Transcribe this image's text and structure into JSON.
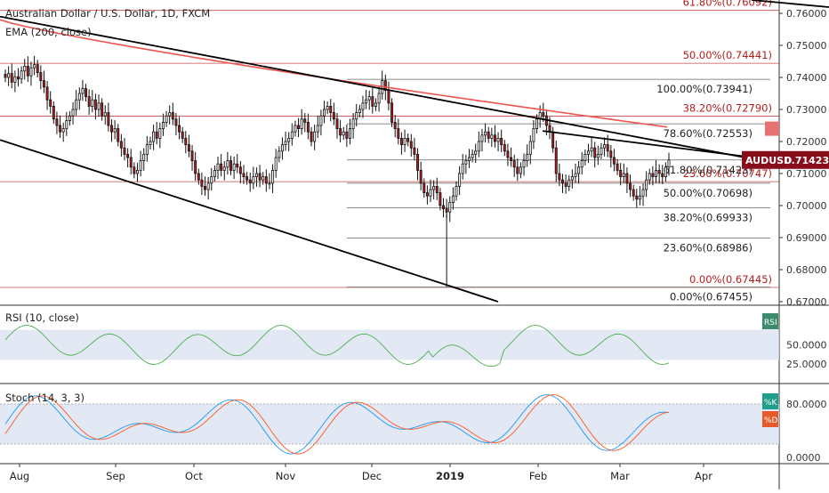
{
  "header": {
    "title": "Australian Dollar / U.S. Dollar, 1D, FXCM",
    "ema_label": "EMA (200, close)",
    "rsi_label": "RSI (10, close)",
    "stoch_label": "Stoch (14, 3, 3)"
  },
  "colors": {
    "up": "#ffffff",
    "down": "#b71c1c",
    "candle_outline": "#111111",
    "ema": "#ef5350",
    "fib": "#b71c1c",
    "trendline": "#000000",
    "rsi_line": "#4caf50",
    "stoch_k": "#2196f3",
    "stoch_d": "#ff5722",
    "band": "#d6e0f0",
    "price_badge": "#880e1b",
    "rsi_badge": "#3d8b6d",
    "k_badge": "#1f9e89",
    "d_badge": "#e65a2a"
  },
  "price_badge": {
    "label": "AUDUSD",
    "value": "0.71423"
  },
  "rsi_badge": "RSI",
  "k_badge": "%K",
  "d_badge": "%D",
  "chart_data": {
    "type": "candlestick",
    "symbol": "AUDUSD",
    "current_price": 0.71423,
    "x_axis_labels": [
      "Aug",
      "Sep",
      "Oct",
      "Nov",
      "Dec",
      "2019",
      "Feb",
      "Mar",
      "Apr"
    ],
    "y_axis": {
      "ticks": [
        "0.76000",
        "0.75000",
        "0.74000",
        "0.73000",
        "0.72000",
        "0.71000",
        "0.70000",
        "0.69000",
        "0.68000",
        "0.67000"
      ],
      "range": [
        0.67,
        0.765
      ]
    },
    "fib_levels_upper": [
      {
        "label": "61.80%(0.76092)",
        "value": 0.76092
      },
      {
        "label": "50.00%(0.74441)",
        "value": 0.74441
      },
      {
        "label": "38.20%(0.72790)",
        "value": 0.7279
      },
      {
        "label": "23.60%(0.70747)",
        "value": 0.70747
      },
      {
        "label": "0.00%(0.67445)",
        "value": 0.67445
      }
    ],
    "fib_levels_lower": [
      {
        "label": "100.00%(0.73941)",
        "value": 0.73941
      },
      {
        "label": "78.60%(0.72553)",
        "value": 0.72553
      },
      {
        "label": "61.80%(0.71423)",
        "value": 0.71423
      },
      {
        "label": "50.00%(0.70698)",
        "value": 0.70698
      },
      {
        "label": "38.20%(0.69933)",
        "value": 0.69933
      },
      {
        "label": "23.60%(0.68986)",
        "value": 0.68986
      },
      {
        "label": "0.00%(0.67455)",
        "value": 0.67455
      }
    ],
    "close": [
      0.74,
      0.7412,
      0.7385,
      0.7402,
      0.7395,
      0.742,
      0.7435,
      0.7405,
      0.743,
      0.744,
      0.7415,
      0.739,
      0.737,
      0.733,
      0.731,
      0.727,
      0.725,
      0.723,
      0.724,
      0.7265,
      0.728,
      0.73,
      0.733,
      0.735,
      0.7365,
      0.734,
      0.731,
      0.733,
      0.73,
      0.732,
      0.728,
      0.729,
      0.725,
      0.723,
      0.724,
      0.72,
      0.718,
      0.716,
      0.715,
      0.712,
      0.71,
      0.711,
      0.714,
      0.716,
      0.719,
      0.72,
      0.723,
      0.721,
      0.724,
      0.726,
      0.728,
      0.729,
      0.727,
      0.725,
      0.723,
      0.721,
      0.719,
      0.717,
      0.714,
      0.71,
      0.708,
      0.706,
      0.705,
      0.707,
      0.709,
      0.711,
      0.713,
      0.711,
      0.712,
      0.714,
      0.711,
      0.713,
      0.712,
      0.71,
      0.709,
      0.708,
      0.707,
      0.709,
      0.71,
      0.708,
      0.709,
      0.707,
      0.707,
      0.711,
      0.715,
      0.717,
      0.719,
      0.72,
      0.721,
      0.723,
      0.725,
      0.724,
      0.727,
      0.726,
      0.723,
      0.72,
      0.723,
      0.725,
      0.728,
      0.73,
      0.731,
      0.729,
      0.727,
      0.724,
      0.722,
      0.723,
      0.721,
      0.724,
      0.727,
      0.729,
      0.73,
      0.732,
      0.733,
      0.734,
      0.731,
      0.732,
      0.735,
      0.739,
      0.736,
      0.732,
      0.726,
      0.724,
      0.721,
      0.719,
      0.721,
      0.72,
      0.718,
      0.716,
      0.711,
      0.707,
      0.704,
      0.703,
      0.705,
      0.706,
      0.704,
      0.7,
      0.699,
      0.698,
      0.701,
      0.703,
      0.706,
      0.71,
      0.713,
      0.714,
      0.715,
      0.716,
      0.717,
      0.72,
      0.722,
      0.723,
      0.721,
      0.722,
      0.72,
      0.721,
      0.719,
      0.717,
      0.715,
      0.714,
      0.712,
      0.71,
      0.712,
      0.714,
      0.716,
      0.72,
      0.724,
      0.727,
      0.729,
      0.728,
      0.725,
      0.723,
      0.718,
      0.71,
      0.708,
      0.707,
      0.706,
      0.708,
      0.709,
      0.71,
      0.712,
      0.714,
      0.716,
      0.717,
      0.718,
      0.715,
      0.716,
      0.718,
      0.719,
      0.717,
      0.715,
      0.713,
      0.711,
      0.709,
      0.71,
      0.707,
      0.705,
      0.703,
      0.702,
      0.703,
      0.705,
      0.708,
      0.71,
      0.709,
      0.711,
      0.71,
      0.709,
      0.712,
      0.7142
    ],
    "ema200_endpoints": [
      0.758,
      0.7245
    ],
    "rsi": {
      "levels": [
        70,
        30
      ],
      "ticks": [
        "50.0000",
        "25.0000"
      ]
    },
    "stoch": {
      "levels": [
        80,
        20
      ],
      "ticks": [
        "80.0000",
        "0.0000"
      ]
    }
  }
}
